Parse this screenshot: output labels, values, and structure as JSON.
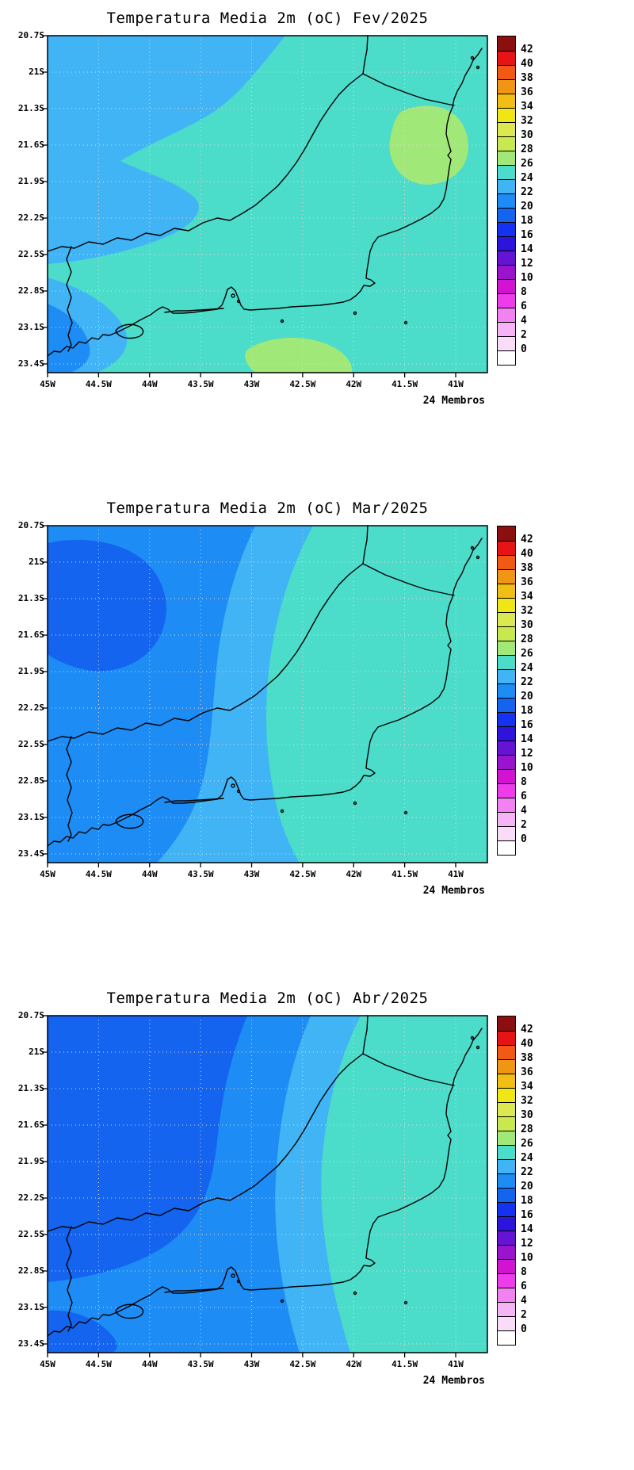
{
  "panels": [
    {
      "title": "Temperatura Media 2m (oC) Fev/2025",
      "members_label": "24 Membros"
    },
    {
      "title": "Temperatura Media 2m (oC) Mar/2025",
      "members_label": "24 Membros"
    },
    {
      "title": "Temperatura Media 2m (oC) Abr/2025",
      "members_label": "24 Membros"
    }
  ],
  "axes": {
    "lat_labels": [
      "20.7S",
      "21S",
      "21.3S",
      "21.6S",
      "21.9S",
      "22.2S",
      "22.5S",
      "22.8S",
      "23.1S",
      "23.4S"
    ],
    "lon_labels": [
      "45W",
      "44.5W",
      "44W",
      "43.5W",
      "43W",
      "42.5W",
      "42W",
      "41.5W",
      "41W"
    ]
  },
  "colorbar": {
    "tick_labels": [
      "0",
      "2",
      "4",
      "6",
      "8",
      "10",
      "12",
      "14",
      "16",
      "18",
      "20",
      "22",
      "24",
      "26",
      "28",
      "30",
      "32",
      "34",
      "36",
      "38",
      "40",
      "42"
    ],
    "colors_bottom_to_top": [
      "#ffffff",
      "#f8dcf8",
      "#f5b4f5",
      "#f282f0",
      "#ee3cec",
      "#d214d2",
      "#9b14cd",
      "#6414d2",
      "#2d14dc",
      "#1432f0",
      "#1464f0",
      "#1e8cf5",
      "#41b4f5",
      "#4cdcca",
      "#a0e878",
      "#c8e850",
      "#dce850",
      "#f0e614",
      "#f0be14",
      "#f09614",
      "#f05a14",
      "#e61414",
      "#8c0f0f"
    ]
  },
  "levels": {
    "c18": "#1464f0",
    "c20": "#1e8cf5",
    "c22": "#41b4f5",
    "c24": "#4cdcca",
    "c26": "#a0e878"
  },
  "line_colors": {
    "coastline": "#000000",
    "grid": "#dcdcdc",
    "frame": "#000000"
  },
  "chart_data": [
    {
      "type": "heatmap",
      "title": "Temperatura Media 2m (oC) Fev/2025",
      "units": "oC",
      "contour_interval": 2,
      "colorbar_range": [
        0,
        42
      ],
      "annotation": "24 Membros",
      "lons_w": [
        45,
        44,
        43,
        42,
        41
      ],
      "lats_s": [
        20.7,
        21.4,
        22.1,
        22.8,
        23.4
      ],
      "values_c": [
        [
          23,
          24,
          25,
          25,
          25
        ],
        [
          23,
          24,
          25,
          25,
          27
        ],
        [
          23,
          24,
          25,
          25,
          25
        ],
        [
          22,
          23,
          25,
          25,
          25
        ],
        [
          21,
          24,
          27,
          25,
          25
        ]
      ]
    },
    {
      "type": "heatmap",
      "title": "Temperatura Media 2m (oC) Mar/2025",
      "units": "oC",
      "contour_interval": 2,
      "colorbar_range": [
        0,
        42
      ],
      "annotation": "24 Membros",
      "lons_w": [
        45,
        44,
        43,
        42,
        41
      ],
      "lats_s": [
        20.7,
        21.4,
        22.1,
        22.8,
        23.4
      ],
      "values_c": [
        [
          21,
          22,
          23,
          24,
          25
        ],
        [
          19,
          21,
          23,
          24,
          25
        ],
        [
          21,
          21,
          23,
          24,
          25
        ],
        [
          21,
          22,
          23,
          25,
          25
        ],
        [
          21,
          23,
          24,
          25,
          25
        ]
      ]
    },
    {
      "type": "heatmap",
      "title": "Temperatura Media 2m (oC) Abr/2025",
      "units": "oC",
      "contour_interval": 2,
      "colorbar_range": [
        0,
        42
      ],
      "annotation": "24 Membros",
      "lons_w": [
        45,
        44,
        43,
        42,
        41
      ],
      "lats_s": [
        20.7,
        21.4,
        22.1,
        22.8,
        23.4
      ],
      "values_c": [
        [
          19,
          20,
          21,
          23,
          24
        ],
        [
          18,
          19,
          21,
          23,
          24
        ],
        [
          19,
          20,
          22,
          23,
          25
        ],
        [
          20,
          21,
          22,
          24,
          25
        ],
        [
          19,
          22,
          23,
          25,
          25
        ]
      ]
    }
  ]
}
